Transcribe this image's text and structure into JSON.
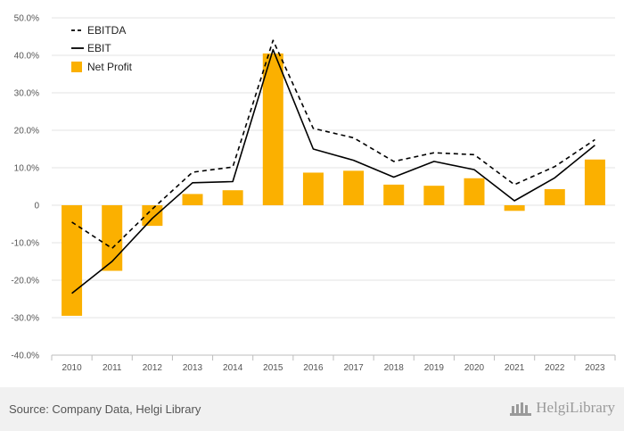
{
  "chart_data": {
    "type": "bar+line",
    "categories": [
      "2010",
      "2011",
      "2012",
      "2013",
      "2014",
      "2015",
      "2016",
      "2017",
      "2018",
      "2019",
      "2020",
      "2021",
      "2022",
      "2023"
    ],
    "ylim": [
      -40,
      50
    ],
    "yticks": [
      -40,
      -30,
      -20,
      -10,
      0,
      10,
      20,
      30,
      40,
      50
    ],
    "ytick_labels": [
      "-40.0%",
      "-30.0%",
      "-20.0%",
      "-10.0%",
      "0",
      "10.0%",
      "20.0%",
      "30.0%",
      "40.0%",
      "50.0%"
    ],
    "legend_position": "top-left",
    "grid": true,
    "series": [
      {
        "name": "EBITDA",
        "kind": "line",
        "style": "dashed",
        "color": "#000000",
        "values": [
          -4.5,
          -11.5,
          -1.0,
          8.8,
          10.2,
          44.0,
          20.5,
          18.0,
          11.7,
          14.0,
          13.5,
          5.5,
          10.3,
          17.5
        ]
      },
      {
        "name": "EBIT",
        "kind": "line",
        "style": "solid",
        "color": "#000000",
        "values": [
          -23.5,
          -15.0,
          -3.5,
          6.0,
          6.3,
          41.5,
          15.0,
          12.0,
          7.5,
          11.7,
          9.5,
          1.2,
          7.3,
          16.0
        ]
      },
      {
        "name": "Net Profit",
        "kind": "bar",
        "color": "#fbb000",
        "values": [
          -29.5,
          -17.5,
          -5.5,
          3.0,
          4.0,
          40.5,
          8.7,
          9.2,
          5.5,
          5.2,
          7.2,
          -1.5,
          4.3,
          12.2
        ]
      }
    ]
  },
  "footer": {
    "source": "Source: Company Data, Helgi Library",
    "brand": "HelgiLibrary"
  }
}
